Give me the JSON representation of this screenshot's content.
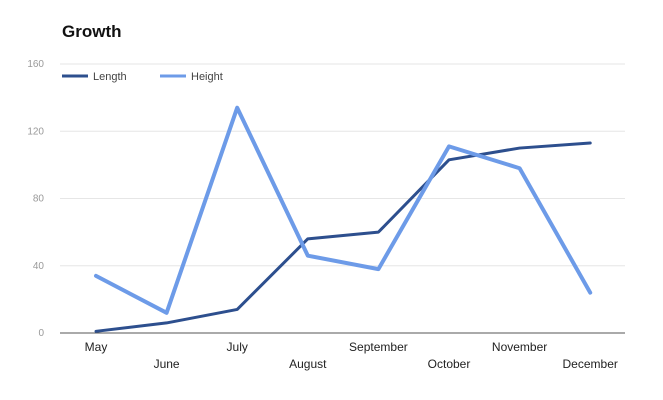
{
  "chart_data": {
    "type": "line",
    "title": "Growth",
    "categories": [
      "May",
      "June",
      "July",
      "August",
      "September",
      "October",
      "November",
      "December"
    ],
    "series": [
      {
        "name": "Length",
        "color": "#2d4f8e",
        "values": [
          1,
          6,
          14,
          56,
          60,
          103,
          110,
          113
        ]
      },
      {
        "name": "Height",
        "color": "#6d9be8",
        "values": [
          34,
          12,
          134,
          46,
          38,
          111,
          98,
          24
        ]
      }
    ],
    "ylim": [
      0,
      160
    ],
    "yticks": [
      0,
      40,
      80,
      120,
      160
    ],
    "grid": true,
    "legend": "top-left"
  }
}
